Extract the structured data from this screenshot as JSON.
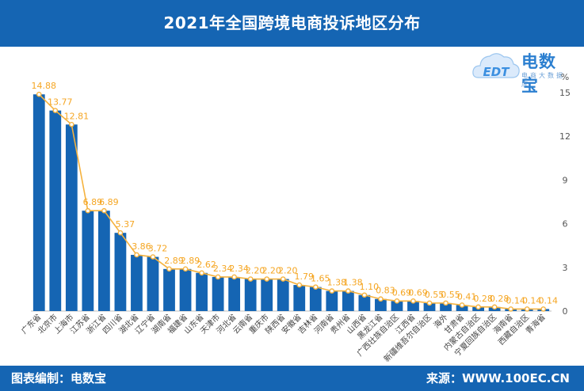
{
  "header": {
    "title": "2021年全国跨境电商投诉地区分布"
  },
  "footer": {
    "left": "图表编制：电数宝",
    "right": "来源：WWW.100EC.CN"
  },
  "logo": {
    "name": "电数宝",
    "sub": "电商大数据库",
    "mark": "EDT"
  },
  "colors": {
    "header": "#1565b3",
    "bar": "#1565b3",
    "line": "#f5b23e",
    "label": "#f5a623"
  },
  "chart_data": {
    "type": "bar+line",
    "categories": [
      "广东省",
      "北京市",
      "上海市",
      "江苏省",
      "浙江省",
      "四川省",
      "湖北省",
      "辽宁省",
      "湖南省",
      "福建省",
      "山东省",
      "天津市",
      "河北省",
      "云南省",
      "重庆市",
      "陕西省",
      "安徽省",
      "吉林省",
      "河南省",
      "贵州省",
      "山西省",
      "黑龙江省",
      "广西壮族自治区",
      "江西省",
      "新疆维吾尔自治区",
      "海外",
      "甘肃省",
      "内蒙古自治区",
      "宁夏回族自治区",
      "海南省",
      "西藏自治区",
      "青海省"
    ],
    "values": [
      14.88,
      13.77,
      12.81,
      6.89,
      6.89,
      5.37,
      3.86,
      3.72,
      2.89,
      2.89,
      2.62,
      2.34,
      2.34,
      2.2,
      2.2,
      2.2,
      1.79,
      1.65,
      1.38,
      1.38,
      1.1,
      0.83,
      0.69,
      0.69,
      0.55,
      0.55,
      0.41,
      0.28,
      0.28,
      0.14,
      0.14,
      0.14
    ],
    "value_labels": [
      "14.88",
      "13.77",
      "12.81",
      "6.89",
      "6.89",
      "5.37",
      "3.86",
      "3.72",
      "2.89",
      "2.89",
      "2.62",
      "2.34",
      "2.34",
      "2.20",
      "2.20",
      "2.20",
      "1.79",
      "1.65",
      "1.38",
      "1.38",
      "1.10",
      "0.83",
      "0.69",
      "0.69",
      "0.55",
      "0.55",
      "0.41",
      "0.28",
      "0.28",
      "0.14",
      "0.14",
      "0.14"
    ],
    "y_unit": "%",
    "ylim": [
      0,
      15
    ],
    "yticks": [
      "0",
      "3",
      "6",
      "9",
      "12",
      "15"
    ],
    "title": "2021年全国跨境电商投诉地区分布"
  }
}
